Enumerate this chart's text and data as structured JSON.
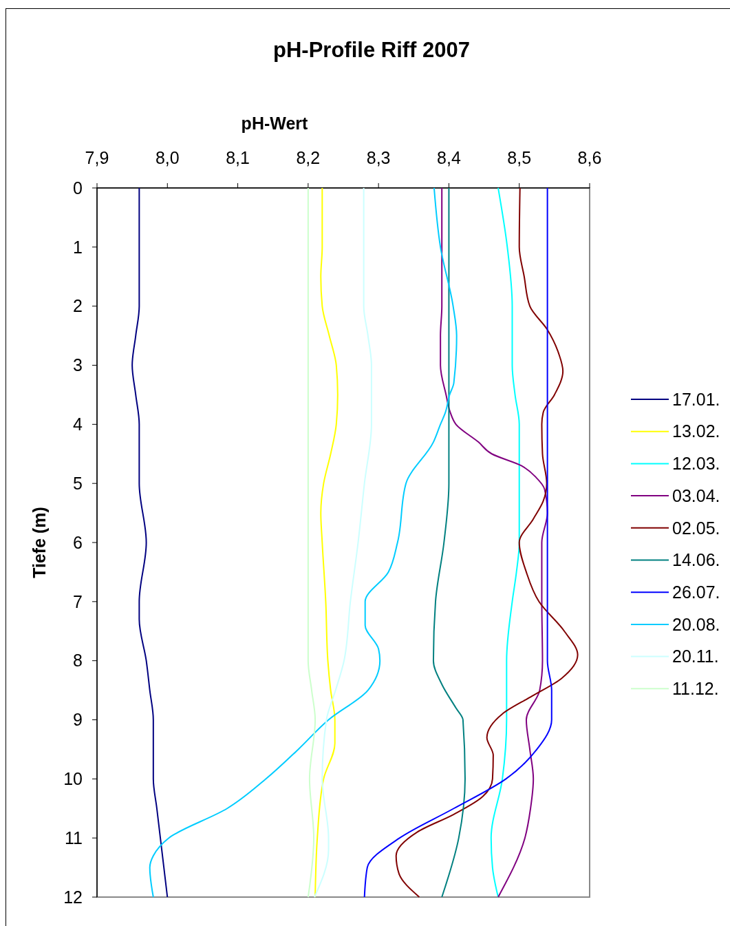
{
  "chart_data": {
    "type": "line",
    "title": "pH-Profile Riff 2007",
    "xlabel": "pH-Wert",
    "ylabel": "Tiefe (m)",
    "xlim": [
      7.9,
      8.6
    ],
    "xticks": [
      {
        "value": 7.9,
        "label": "7,9"
      },
      {
        "value": 8.0,
        "label": "8,0"
      },
      {
        "value": 8.1,
        "label": "8,1"
      },
      {
        "value": 8.2,
        "label": "8,2"
      },
      {
        "value": 8.3,
        "label": "8,3"
      },
      {
        "value": 8.4,
        "label": "8,4"
      },
      {
        "value": 8.5,
        "label": "8,5"
      },
      {
        "value": 8.6,
        "label": "8,6"
      }
    ],
    "ylim": [
      12,
      0
    ],
    "yticks": [
      0,
      1,
      2,
      3,
      4,
      5,
      6,
      7,
      8,
      9,
      10,
      11,
      12
    ],
    "grid": false,
    "legend": "right",
    "series": [
      {
        "name": "17.01.",
        "color": "#000080",
        "x": [
          7.96,
          7.96,
          7.955,
          7.95,
          7.955,
          7.96,
          7.96,
          7.97,
          7.96,
          7.96,
          7.97,
          7.975,
          7.98,
          7.98,
          7.985,
          7.99,
          8.0
        ],
        "values": [
          0,
          2,
          2.5,
          3,
          3.5,
          4,
          5,
          6,
          7,
          7.3,
          8,
          8.5,
          9,
          10,
          10.5,
          11,
          12
        ]
      },
      {
        "name": "13.02.",
        "color": "#ffff00",
        "x": [
          8.22,
          8.22,
          8.218,
          8.22,
          8.23,
          8.24,
          8.242,
          8.24,
          8.232,
          8.222,
          8.218,
          8.22,
          8.225,
          8.228,
          8.232,
          8.238,
          8.238,
          8.222,
          8.213,
          8.21
        ],
        "values": [
          0,
          1,
          1.5,
          2,
          2.5,
          3,
          3.5,
          4,
          4.5,
          5,
          5.5,
          6,
          7,
          8,
          8.5,
          9,
          9.4,
          10,
          11,
          12
        ]
      },
      {
        "name": "12.03.",
        "color": "#00ffff",
        "x": [
          8.47,
          8.483,
          8.49,
          8.49,
          8.494,
          8.5,
          8.5,
          8.5,
          8.496,
          8.49,
          8.482,
          8.482,
          8.476,
          8.46,
          8.462,
          8.47
        ],
        "values": [
          0,
          1,
          2,
          3,
          3.5,
          4,
          5,
          6,
          6.5,
          7,
          8,
          9,
          10,
          11,
          11.5,
          12
        ]
      },
      {
        "name": "03.04.",
        "color": "#800080",
        "x": [
          8.39,
          8.39,
          8.388,
          8.388,
          8.396,
          8.402,
          8.41,
          8.442,
          8.461,
          8.503,
          8.524,
          8.536,
          8.54,
          8.532,
          8.532,
          8.533,
          8.529,
          8.51,
          8.515,
          8.52,
          8.516,
          8.508,
          8.47
        ],
        "values": [
          0,
          2,
          2.5,
          3,
          3.5,
          3.8,
          4,
          4.3,
          4.5,
          4.7,
          4.9,
          5.1,
          5.5,
          6,
          7,
          8,
          8.5,
          9,
          9.5,
          10,
          10.5,
          11,
          12
        ]
      },
      {
        "name": "02.05.",
        "color": "#800000",
        "x": [
          8.501,
          8.5,
          8.507,
          8.515,
          8.54,
          8.556,
          8.562,
          8.55,
          8.534,
          8.532,
          8.533,
          8.539,
          8.534,
          8.52,
          8.5,
          8.51,
          8.528,
          8.564,
          8.583,
          8.56,
          8.518,
          8.476,
          8.454,
          8.463,
          8.462,
          8.448,
          8.407,
          8.355,
          8.325,
          8.329,
          8.358
        ],
        "values": [
          0,
          1,
          1.5,
          2,
          2.4,
          2.8,
          3.1,
          3.5,
          3.8,
          4,
          4.5,
          5,
          5.3,
          5.6,
          6,
          6.5,
          7,
          7.5,
          7.9,
          8.3,
          8.6,
          8.9,
          9.3,
          9.6,
          10,
          10.3,
          10.6,
          10.9,
          11.3,
          11.6,
          12
        ]
      },
      {
        "name": "14.06.",
        "color": "#008080",
        "x": [
          8.4,
          8.4,
          8.393,
          8.381,
          8.378,
          8.39,
          8.41,
          8.42,
          8.423,
          8.414,
          8.39
        ],
        "values": [
          0,
          5,
          6,
          7,
          8,
          8.4,
          8.8,
          9,
          10,
          11,
          12
        ]
      },
      {
        "name": "26.07.",
        "color": "#0000ff",
        "x": [
          8.54,
          8.54,
          8.546,
          8.546,
          8.525,
          8.481,
          8.407,
          8.33,
          8.284,
          8.28
        ],
        "values": [
          0,
          8,
          8.5,
          9,
          9.5,
          10,
          10.5,
          11,
          11.5,
          12
        ]
      },
      {
        "name": "20.08.",
        "color": "#00ccff",
        "x": [
          8.379,
          8.388,
          8.406,
          8.411,
          8.407,
          8.401,
          8.395,
          8.388,
          8.378,
          8.339,
          8.327,
          8.314,
          8.281,
          8.281,
          8.3,
          8.302,
          8.285,
          8.229,
          8.186,
          8.14,
          8.085,
          8.002,
          7.98,
          7.975,
          7.98
        ],
        "values": [
          0,
          1,
          2,
          2.5,
          3.3,
          3.5,
          3.8,
          4,
          4.3,
          5,
          6,
          6.5,
          7,
          7.4,
          7.8,
          8,
          8.5,
          9,
          9.5,
          10,
          10.5,
          11,
          11.3,
          11.5,
          12
        ]
      },
      {
        "name": "20.11.",
        "color": "#ccffff",
        "x": [
          8.279,
          8.279,
          8.285,
          8.29,
          8.29,
          8.28,
          8.271,
          8.26,
          8.251,
          8.239,
          8.226,
          8.22,
          8.229,
          8.229,
          8.209
        ],
        "values": [
          0,
          2,
          2.5,
          3,
          4,
          5,
          6,
          7,
          8,
          8.5,
          9,
          10,
          11,
          11.2,
          12
        ]
      },
      {
        "name": "11.12.",
        "color": "#ccffcc",
        "x": [
          8.2,
          8.2,
          8.205,
          8.21,
          8.202,
          8.208,
          8.2
        ],
        "values": [
          0,
          8,
          8.5,
          9,
          10,
          11,
          12
        ]
      }
    ]
  }
}
